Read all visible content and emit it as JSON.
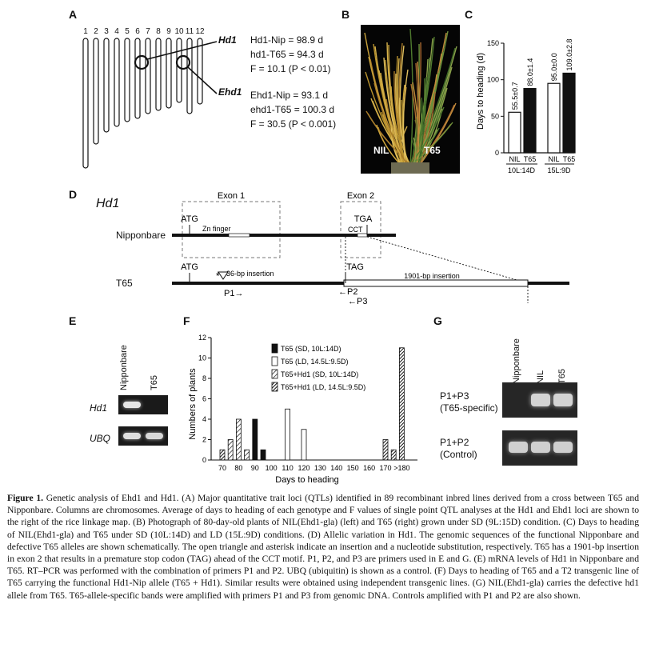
{
  "panels": {
    "A": "A",
    "B": "B",
    "C": "C",
    "D": "D",
    "E": "E",
    "F": "F",
    "G": "G"
  },
  "panelA": {
    "chromosomes": [
      "1",
      "2",
      "3",
      "4",
      "5",
      "6",
      "7",
      "8",
      "9",
      "10",
      "11",
      "12"
    ],
    "hd1_label": "Hd1",
    "ehd1_label": "Ehd1",
    "hd1_lines": [
      "Hd1-Nip = 98.9 d",
      "hd1-T65 = 94.3 d",
      "F = 10.1 (P < 0.01)"
    ],
    "ehd1_lines": [
      "Ehd1-Nip = 93.1 d",
      "ehd1-T65 = 100.3 d",
      "F = 30.5 (P < 0.001)"
    ]
  },
  "panelB": {
    "left_label": "NIL",
    "right_label": "T65"
  },
  "chart_data": {
    "type": "bar",
    "ylabel": "Days to heading (d)",
    "ylim": [
      0,
      150
    ],
    "yticks": [
      "0",
      "50",
      "100",
      "150"
    ],
    "groups": [
      {
        "condition": "10L:14D",
        "bars": [
          {
            "name": "NIL",
            "value": 55.5,
            "label": "55.5±0.7",
            "fill": "#ffffff"
          },
          {
            "name": "T65",
            "value": 88.0,
            "label": "88.0±1.4",
            "fill": "#111111"
          }
        ]
      },
      {
        "condition": "15L:9D",
        "bars": [
          {
            "name": "NIL",
            "value": 95.0,
            "label": "95.0±0.0",
            "fill": "#ffffff"
          },
          {
            "name": "T65",
            "value": 109.0,
            "label": "109.0±2.8",
            "fill": "#111111"
          }
        ]
      }
    ]
  },
  "panelD": {
    "gene": "Hd1",
    "exon1": "Exon 1",
    "exon2": "Exon 2",
    "nip_label": "Nipponbare",
    "t65_label": "T65",
    "atg": "ATG",
    "tga": "TGA",
    "tag": "TAG",
    "zn": "Zn finger",
    "cct": "CCT",
    "ins36": "36-bp insertion",
    "ins1901": "1901-bp insertion",
    "p1": "P1→",
    "p2": "←P2",
    "p3": "←P3",
    "asterisk": "*"
  },
  "panelE": {
    "col1": "Nipponbare",
    "col2": "T65",
    "row1": "Hd1",
    "row2": "UBQ"
  },
  "panelF": {
    "ylabel": "Numbers of plants",
    "xlabel": "Days to heading",
    "yticks": [
      "0",
      "2",
      "4",
      "6",
      "8",
      "10",
      "12"
    ],
    "xticks": [
      "70",
      "80",
      "90",
      "100",
      "110",
      "120",
      "130",
      "140",
      "150",
      "160",
      "170",
      ">180"
    ],
    "legend": [
      "T65 (SD, 10L:14D)",
      "T65 (LD, 14.5L:9.5D)",
      "T65+Hd1 (SD, 10L:14D)",
      "T65+Hd1 (LD, 14.5L:9.5D)"
    ],
    "series": [
      {
        "name": "T65 (SD, 10L:14D)",
        "points": [
          [
            90,
            4
          ],
          [
            95,
            1
          ]
        ]
      },
      {
        "name": "T65 (LD, 14.5L:9.5D)",
        "points": [
          [
            110,
            5
          ],
          [
            120,
            3
          ]
        ]
      },
      {
        "name": "T65+Hd1 (SD, 10L:14D)",
        "points": [
          [
            75,
            2
          ],
          [
            80,
            4
          ],
          [
            85,
            1
          ]
        ]
      },
      {
        "name": "T65+Hd1 (LD, 14.5L:9.5D)",
        "points": [
          [
            70,
            1
          ],
          [
            170,
            2
          ],
          [
            175,
            1
          ],
          [
            180,
            11
          ]
        ]
      }
    ]
  },
  "panelG": {
    "col1": "Nipponbare",
    "col2": "NIL",
    "col3": "T65",
    "row1a": "P1+P3",
    "row1b": "(T65-specific)",
    "row2a": "P1+P2",
    "row2b": "(Control)"
  },
  "caption": {
    "lead": "Figure 1.",
    "text": "Genetic analysis of Ehd1 and Hd1. (A) Major quantitative trait loci (QTLs) identified in 89 recombinant inbred lines derived from a cross between T65 and Nipponbare. Columns are chromosomes. Average of days to heading of each genotype and F values of single point QTL analyses at the Hd1 and Ehd1 loci are shown to the right of the rice linkage map. (B) Photograph of 80-day-old plants of NIL(Ehd1-gla) (left) and T65 (right) grown under SD (9L:15D) condition. (C) Days to heading of NIL(Ehd1-gla) and T65 under SD (10L:14D) and LD (15L:9D) conditions. (D) Allelic variation in Hd1. The genomic sequences of the functional Nipponbare and defective T65 alleles are shown schematically. The open triangle and asterisk indicate an insertion and a nucleotide substitution, respectively. T65 has a 1901-bp insertion in exon 2 that results in a premature stop codon (TAG) ahead of the CCT motif. P1, P2, and P3 are primers used in E and G. (E) mRNA levels of Hd1 in Nipponbare and T65. RT–PCR was performed with the combination of primers P1 and P2. UBQ (ubiquitin) is shown as a control. (F) Days to heading of T65 and a T2 transgenic line of T65 carrying the functional Hd1-Nip allele (T65 + Hd1). Similar results were obtained using independent transgenic lines. (G) NIL(Ehd1-gla) carries the defective hd1 allele from T65. T65-allele-specific bands were amplified with primers P1 and P3 from genomic DNA. Controls amplified with P1 and P2 are also shown."
  }
}
